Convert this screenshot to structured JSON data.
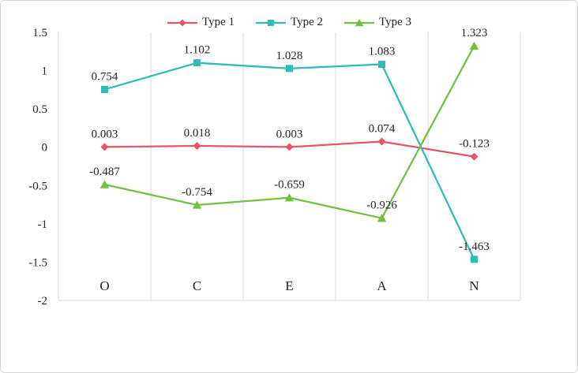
{
  "chart_data": {
    "type": "line",
    "title": "",
    "xlabel": "",
    "ylabel": "",
    "categories": [
      "O",
      "C",
      "E",
      "A",
      "N"
    ],
    "series": [
      {
        "name": "Type 1",
        "marker": "diamond",
        "color": "#e85566",
        "values": [
          0.003,
          0.018,
          0.003,
          0.074,
          -0.123
        ],
        "data_labels": [
          "0.003",
          "0.018",
          "0.003",
          "0.074",
          "-0.123"
        ]
      },
      {
        "name": "Type 2",
        "marker": "square",
        "color": "#2ebcb4",
        "values": [
          0.754,
          1.102,
          1.028,
          1.083,
          -1.463
        ],
        "data_labels": [
          "0.754",
          "1.102",
          "1.028",
          "1.083",
          "-1.463"
        ]
      },
      {
        "name": "Type 3",
        "marker": "triangle",
        "color": "#70c041",
        "values": [
          -0.487,
          -0.754,
          -0.659,
          -0.926,
          1.323
        ],
        "data_labels": [
          "-0.487",
          "-0.754",
          "-0.659",
          "-0.926",
          "1.323"
        ]
      }
    ],
    "ylim": [
      -2,
      1.5
    ],
    "y_tick_labels": [
      "1.5",
      "1",
      "0.5",
      "0",
      "-0.5",
      "-1",
      "-1.5",
      "-2"
    ],
    "grid": "vertical-only",
    "legend_position": "top",
    "colors": {
      "gridline": "#d9d9d9",
      "text": "#262626",
      "border": "#d6d6d6",
      "background": "#ffffff"
    }
  }
}
